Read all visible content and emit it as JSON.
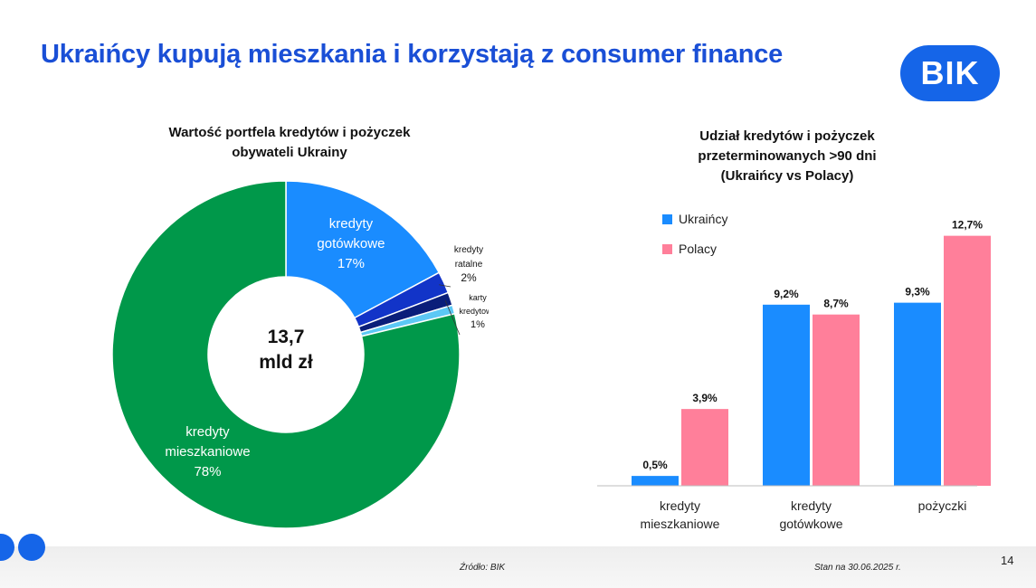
{
  "slide": {
    "title": "Ukraińcy kupują mieszkania i korzystają z consumer finance",
    "logo_text": "BIK",
    "source": "Źródło: BIK",
    "date": "Stan na 30.06.2025 r.",
    "page_number": "14"
  },
  "colors": {
    "brand_blue": "#1565e8",
    "title_blue": "#1a4fd6",
    "mieszkaniowe": "#00984a",
    "gotowkowe": "#1a8cff",
    "ratalne": "#1234c8",
    "karty": "#0a1e7a",
    "inne": "#5cc8f5",
    "ukraincy": "#1a8cff",
    "polacy": "#ff7f9a"
  },
  "chart_data": [
    {
      "type": "pie",
      "variant": "donut",
      "title_lines": [
        "Wartość portfela kredytów i pożyczek",
        "obywateli Ukrainy"
      ],
      "center_label": [
        "13,7",
        "mld zł"
      ],
      "slices": [
        {
          "key": "gotowkowe",
          "label": [
            "kredyty",
            "gotówkowe"
          ],
          "percent_label": "17%",
          "value": 17
        },
        {
          "key": "ratalne",
          "label": [
            "kredyty",
            "ratalne"
          ],
          "percent_label": "2%",
          "value": 2
        },
        {
          "key": "karty",
          "label": [
            "karty",
            "kredytowe"
          ],
          "percent_label": "1%",
          "value": 1.2
        },
        {
          "key": "inne",
          "label": [],
          "percent_label": "",
          "value": 0.8
        },
        {
          "key": "mieszkaniowe",
          "label": [
            "kredyty",
            "mieszkaniowe"
          ],
          "percent_label": "78%",
          "value": 78
        }
      ]
    },
    {
      "type": "bar",
      "title_lines": [
        "Udział kredytów i pożyczek",
        "przeterminowanych >90 dni",
        "(Ukraińcy vs Polacy)"
      ],
      "categories": [
        [
          "kredyty",
          "mieszkaniowe"
        ],
        [
          "kredyty",
          "gotówkowe"
        ],
        [
          "pożyczki"
        ]
      ],
      "series": [
        {
          "name": "Ukraińcy",
          "key": "ukraincy",
          "values": [
            0.5,
            9.2,
            9.3
          ],
          "labels": [
            "0,5%",
            "9,2%",
            "9,3%"
          ]
        },
        {
          "name": "Polacy",
          "key": "polacy",
          "values": [
            3.9,
            8.7,
            12.7
          ],
          "labels": [
            "3,9%",
            "8,7%",
            "12,7%"
          ]
        }
      ],
      "ylim": [
        0,
        14
      ],
      "legend": "top-left",
      "grid": false
    }
  ]
}
